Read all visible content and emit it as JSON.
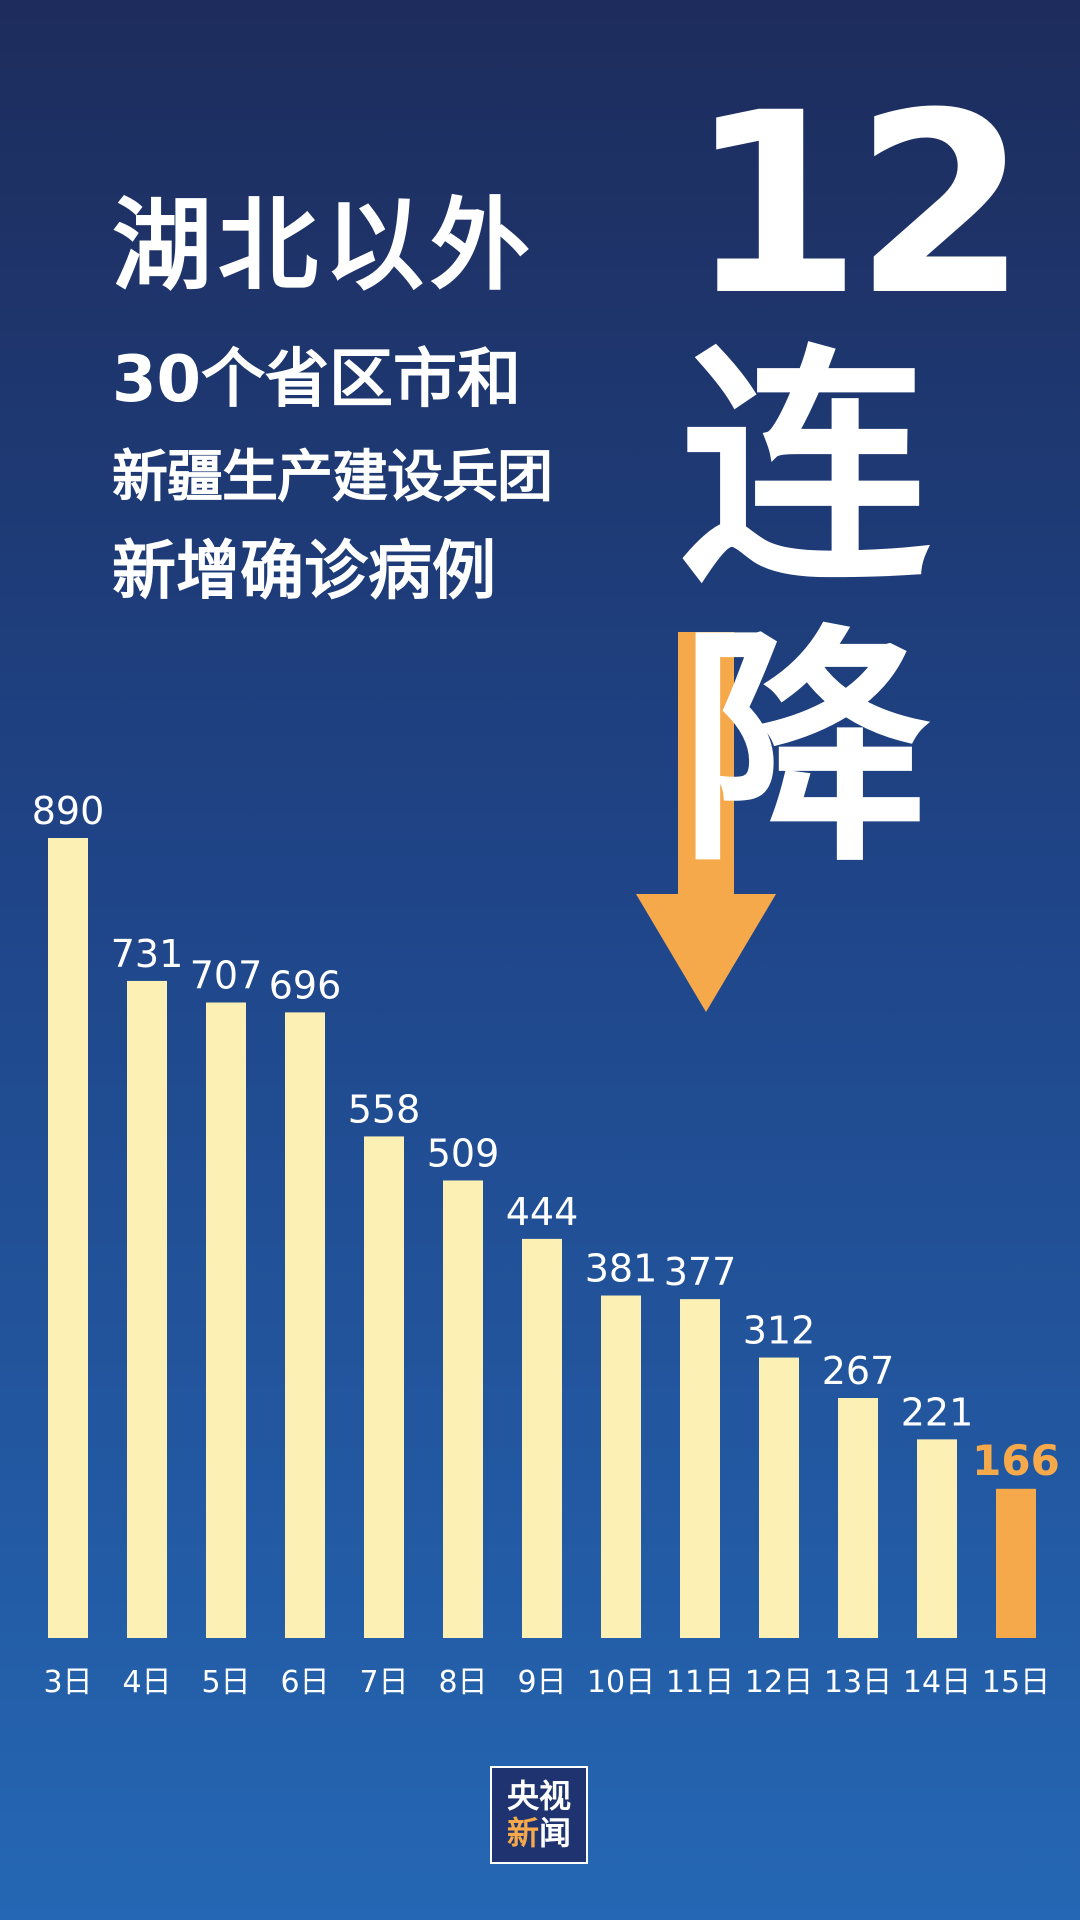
{
  "headline": {
    "line1": "湖北以外",
    "line2": "30个省区市和",
    "line3": "新疆生产建设兵团",
    "line4": "新增确诊病例"
  },
  "badge": {
    "number": "12",
    "char1": "连",
    "char2": "降"
  },
  "logo": {
    "line1": "央视",
    "line2_accent": "新",
    "line2_rest": "闻"
  },
  "colors": {
    "bar": "#fdf0b4",
    "bar_highlight": "#f5a94b",
    "arrow": "#f5a94b",
    "value_label": "#ffffff",
    "value_label_highlight": "#f5a94b",
    "tick_label": "#ffffff"
  },
  "chart_data": {
    "type": "bar",
    "categories": [
      "3日",
      "4日",
      "5日",
      "6日",
      "7日",
      "8日",
      "9日",
      "10日",
      "11日",
      "12日",
      "13日",
      "14日",
      "15日"
    ],
    "values": [
      890,
      731,
      707,
      696,
      558,
      509,
      444,
      381,
      377,
      312,
      267,
      221,
      166
    ],
    "highlight_index": 12,
    "data_labels": true,
    "ylim": [
      0,
      890
    ],
    "grid": false,
    "legend": "none"
  }
}
